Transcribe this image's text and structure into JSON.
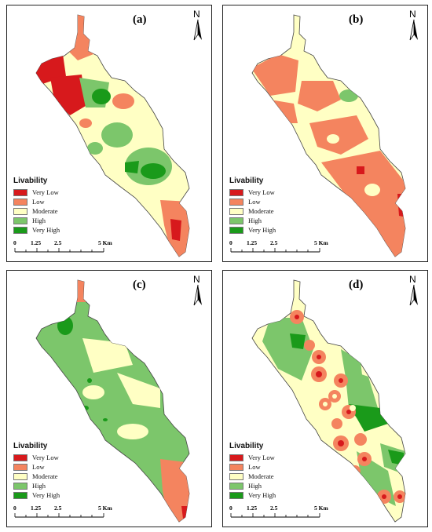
{
  "panels": [
    {
      "label": "(a)",
      "scheme": "a"
    },
    {
      "label": "(b)",
      "scheme": "b"
    },
    {
      "label": "(c)",
      "scheme": "c"
    },
    {
      "label": "(d)",
      "scheme": "d"
    }
  ],
  "north_letter": "N",
  "legend": {
    "title": "Livability",
    "items": [
      {
        "label": "Very Low",
        "color": "#d7191c"
      },
      {
        "label": "Low",
        "color": "#f4845f"
      },
      {
        "label": "Moderate",
        "color": "#ffffc4"
      },
      {
        "label": "High",
        "color": "#7cc66b"
      },
      {
        "label": "Very High",
        "color": "#1a9a1a"
      }
    ]
  },
  "scale": {
    "ticks": [
      "0",
      "1.25",
      "2.5",
      "5 Km"
    ]
  }
}
